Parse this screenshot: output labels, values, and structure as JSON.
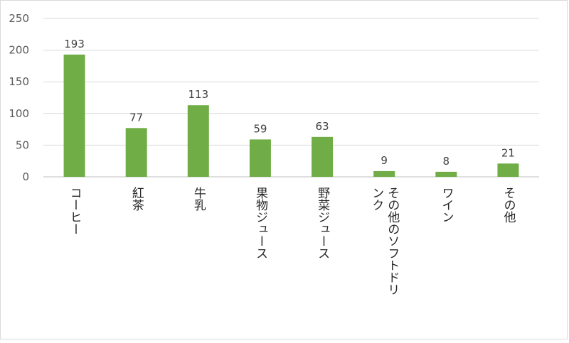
{
  "chart_data": {
    "type": "bar",
    "categories": [
      "コーヒー",
      "紅茶",
      "牛乳",
      "果物ジュース",
      "野菜ジュース",
      "その他のソフトドリンク",
      "ワイン",
      "その他"
    ],
    "category_label_lines": [
      [
        "コーヒー"
      ],
      [
        "紅茶"
      ],
      [
        "牛乳"
      ],
      [
        "果物ジュース"
      ],
      [
        "野菜ジュース"
      ],
      [
        "その他のソフトドリ",
        "ンク"
      ],
      [
        "ワイン"
      ],
      [
        "その他"
      ]
    ],
    "values": [
      193,
      77,
      113,
      59,
      63,
      9,
      8,
      21
    ],
    "data_labels": [
      "193",
      "77",
      "113",
      "59",
      "63",
      "9",
      "8",
      "21"
    ],
    "y_ticks": [
      "0",
      "50",
      "100",
      "150",
      "200",
      "250"
    ],
    "ylim": [
      0,
      250
    ],
    "title": "",
    "xlabel": "",
    "ylabel": "",
    "grid": true,
    "legend": "none",
    "colors": {
      "bar": "#70ad47",
      "grid": "#d9d9d9",
      "text": "#595959"
    }
  }
}
